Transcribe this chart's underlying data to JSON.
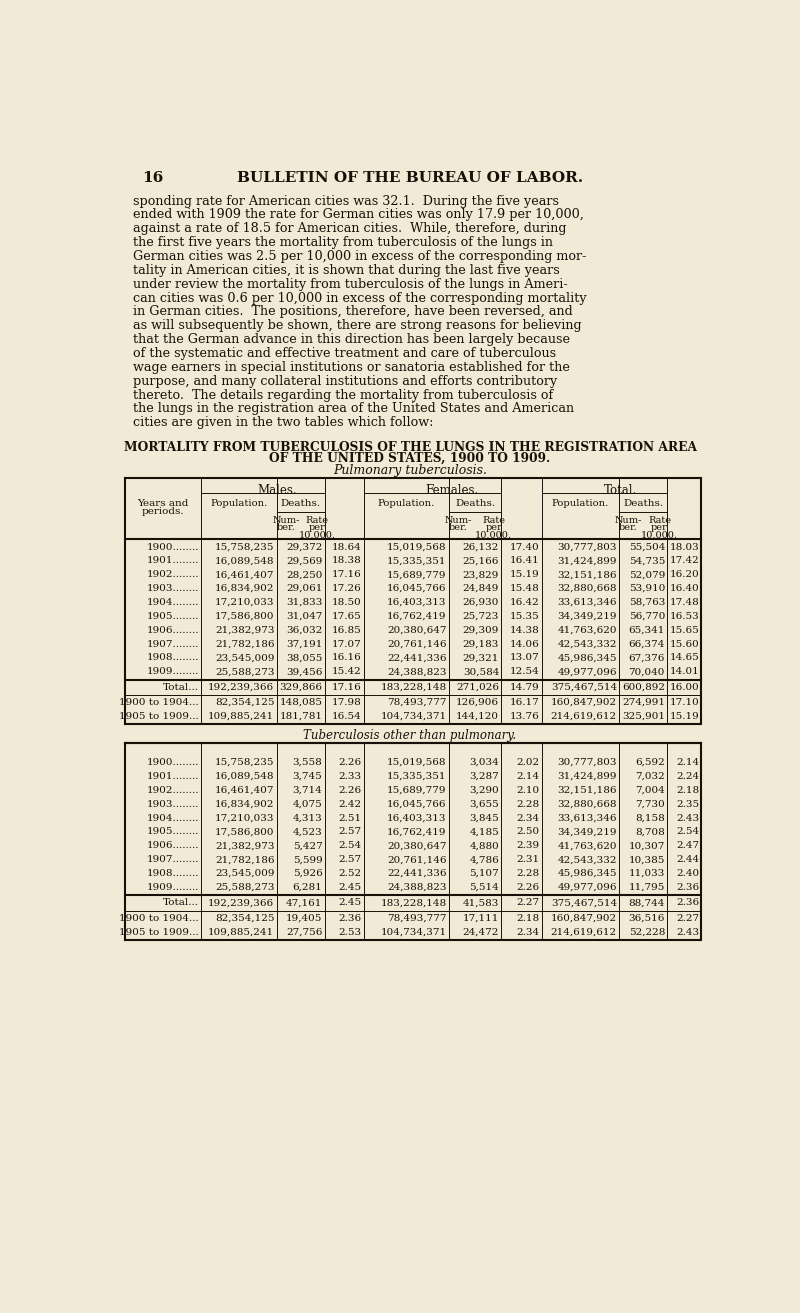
{
  "page_num": "16",
  "header": "BULLETIN OF THE BUREAU OF LABOR.",
  "body_text": [
    "sponding rate for American cities was 32.1.  During the five years",
    "ended with 1909 the rate for German cities was only 17.9 per 10,000,",
    "against a rate of 18.5 for American cities.  While, therefore, during",
    "the first five years the mortality from tuberculosis of the lungs in",
    "German cities was 2.5 per 10,000 in excess of the corresponding mor-",
    "tality in American cities, it is shown that during the last five years",
    "under review the mortality from tuberculosis of the lungs in Ameri-",
    "can cities was 0.6 per 10,000 in excess of the corresponding mortality",
    "in German cities.  The positions, therefore, have been reversed, and",
    "as will subsequently be shown, there are strong reasons for believing",
    "that the German advance in this direction has been largely because",
    "of the systematic and effective treatment and care of tuberculous",
    "wage earners in special institutions or sanatoria established for the",
    "purpose, and many collateral institutions and efforts contributory",
    "thereto.  The details regarding the mortality from tuberculosis of",
    "the lungs in the registration area of the United States and American",
    "cities are given in the two tables which follow:"
  ],
  "table_title_line1": "MORTALITY FROM TUBERCULOSIS OF THE LUNGS IN THE REGISTRATION AREA",
  "table_title_line2": "OF THE UNITED STATES, 1900 TO 1909.",
  "table_subtitle": "Pulmonary tuberculosis.",
  "bg_color": "#f0ead6",
  "text_color": "#1a1008",
  "pulmonary_data": [
    {
      "year": "1900",
      "m_pop": "15,758,235",
      "m_num": "29,372",
      "m_rate": "18.64",
      "f_pop": "15,019,568",
      "f_num": "26,132",
      "f_rate": "17.40",
      "t_pop": "30,777,803",
      "t_num": "55,504",
      "t_rate": "18.03"
    },
    {
      "year": "1901",
      "m_pop": "16,089,548",
      "m_num": "29,569",
      "m_rate": "18.38",
      "f_pop": "15,335,351",
      "f_num": "25,166",
      "f_rate": "16.41",
      "t_pop": "31,424,899",
      "t_num": "54,735",
      "t_rate": "17.42"
    },
    {
      "year": "1902",
      "m_pop": "16,461,407",
      "m_num": "28,250",
      "m_rate": "17.16",
      "f_pop": "15,689,779",
      "f_num": "23,829",
      "f_rate": "15.19",
      "t_pop": "32,151,186",
      "t_num": "52,079",
      "t_rate": "16.20"
    },
    {
      "year": "1903",
      "m_pop": "16,834,902",
      "m_num": "29,061",
      "m_rate": "17.26",
      "f_pop": "16,045,766",
      "f_num": "24,849",
      "f_rate": "15.48",
      "t_pop": "32,880,668",
      "t_num": "53,910",
      "t_rate": "16.40"
    },
    {
      "year": "1904",
      "m_pop": "17,210,033",
      "m_num": "31,833",
      "m_rate": "18.50",
      "f_pop": "16,403,313",
      "f_num": "26,930",
      "f_rate": "16.42",
      "t_pop": "33,613,346",
      "t_num": "58,763",
      "t_rate": "17.48"
    },
    {
      "year": "1905",
      "m_pop": "17,586,800",
      "m_num": "31,047",
      "m_rate": "17.65",
      "f_pop": "16,762,419",
      "f_num": "25,723",
      "f_rate": "15.35",
      "t_pop": "34,349,219",
      "t_num": "56,770",
      "t_rate": "16.53"
    },
    {
      "year": "1906",
      "m_pop": "21,382,973",
      "m_num": "36,032",
      "m_rate": "16.85",
      "f_pop": "20,380,647",
      "f_num": "29,309",
      "f_rate": "14.38",
      "t_pop": "41,763,620",
      "t_num": "65,341",
      "t_rate": "15.65"
    },
    {
      "year": "1907",
      "m_pop": "21,782,186",
      "m_num": "37,191",
      "m_rate": "17.07",
      "f_pop": "20,761,146",
      "f_num": "29,183",
      "f_rate": "14.06",
      "t_pop": "42,543,332",
      "t_num": "66,374",
      "t_rate": "15.60"
    },
    {
      "year": "1908",
      "m_pop": "23,545,009",
      "m_num": "38,055",
      "m_rate": "16.16",
      "f_pop": "22,441,336",
      "f_num": "29,321",
      "f_rate": "13.07",
      "t_pop": "45,986,345",
      "t_num": "67,376",
      "t_rate": "14.65"
    },
    {
      "year": "1909",
      "m_pop": "25,588,273",
      "m_num": "39,456",
      "m_rate": "15.42",
      "f_pop": "24,388,823",
      "f_num": "30,584",
      "f_rate": "12.54",
      "t_pop": "49,977,096",
      "t_num": "70,040",
      "t_rate": "14.01"
    }
  ],
  "pulmonary_total": {
    "year": "Total...",
    "m_pop": "192,239,366",
    "m_num": "329,866",
    "m_rate": "17.16",
    "f_pop": "183,228,148",
    "f_num": "271,026",
    "f_rate": "14.79",
    "t_pop": "375,467,514",
    "t_num": "600,892",
    "t_rate": "16.00"
  },
  "pulmonary_subtotals": [
    {
      "year": "1900 to 1904...",
      "m_pop": "82,354,125",
      "m_num": "148,085",
      "m_rate": "17.98",
      "f_pop": "78,493,777",
      "f_num": "126,906",
      "f_rate": "16.17",
      "t_pop": "160,847,902",
      "t_num": "274,991",
      "t_rate": "17.10"
    },
    {
      "year": "1905 to 1909...",
      "m_pop": "109,885,241",
      "m_num": "181,781",
      "m_rate": "16.54",
      "f_pop": "104,734,371",
      "f_num": "144,120",
      "f_rate": "13.76",
      "t_pop": "214,619,612",
      "t_num": "325,901",
      "t_rate": "15.19"
    }
  ],
  "table2_subtitle": "Tuberculosis other than pulmonary.",
  "other_data": [
    {
      "year": "1900",
      "m_pop": "15,758,235",
      "m_num": "3,558",
      "m_rate": "2.26",
      "f_pop": "15,019,568",
      "f_num": "3,034",
      "f_rate": "2.02",
      "t_pop": "30,777,803",
      "t_num": "6,592",
      "t_rate": "2.14"
    },
    {
      "year": "1901",
      "m_pop": "16,089,548",
      "m_num": "3,745",
      "m_rate": "2.33",
      "f_pop": "15,335,351",
      "f_num": "3,287",
      "f_rate": "2.14",
      "t_pop": "31,424,899",
      "t_num": "7,032",
      "t_rate": "2.24"
    },
    {
      "year": "1902",
      "m_pop": "16,461,407",
      "m_num": "3,714",
      "m_rate": "2.26",
      "f_pop": "15,689,779",
      "f_num": "3,290",
      "f_rate": "2.10",
      "t_pop": "32,151,186",
      "t_num": "7,004",
      "t_rate": "2.18"
    },
    {
      "year": "1903",
      "m_pop": "16,834,902",
      "m_num": "4,075",
      "m_rate": "2.42",
      "f_pop": "16,045,766",
      "f_num": "3,655",
      "f_rate": "2.28",
      "t_pop": "32,880,668",
      "t_num": "7,730",
      "t_rate": "2.35"
    },
    {
      "year": "1904",
      "m_pop": "17,210,033",
      "m_num": "4,313",
      "m_rate": "2.51",
      "f_pop": "16,403,313",
      "f_num": "3,845",
      "f_rate": "2.34",
      "t_pop": "33,613,346",
      "t_num": "8,158",
      "t_rate": "2.43"
    },
    {
      "year": "1905",
      "m_pop": "17,586,800",
      "m_num": "4,523",
      "m_rate": "2.57",
      "f_pop": "16,762,419",
      "f_num": "4,185",
      "f_rate": "2.50",
      "t_pop": "34,349,219",
      "t_num": "8,708",
      "t_rate": "2.54"
    },
    {
      "year": "1906",
      "m_pop": "21,382,973",
      "m_num": "5,427",
      "m_rate": "2.54",
      "f_pop": "20,380,647",
      "f_num": "4,880",
      "f_rate": "2.39",
      "t_pop": "41,763,620",
      "t_num": "10,307",
      "t_rate": "2.47"
    },
    {
      "year": "1907",
      "m_pop": "21,782,186",
      "m_num": "5,599",
      "m_rate": "2.57",
      "f_pop": "20,761,146",
      "f_num": "4,786",
      "f_rate": "2.31",
      "t_pop": "42,543,332",
      "t_num": "10,385",
      "t_rate": "2.44"
    },
    {
      "year": "1908",
      "m_pop": "23,545,009",
      "m_num": "5,926",
      "m_rate": "2.52",
      "f_pop": "22,441,336",
      "f_num": "5,107",
      "f_rate": "2.28",
      "t_pop": "45,986,345",
      "t_num": "11,033",
      "t_rate": "2.40"
    },
    {
      "year": "1909",
      "m_pop": "25,588,273",
      "m_num": "6,281",
      "m_rate": "2.45",
      "f_pop": "24,388,823",
      "f_num": "5,514",
      "f_rate": "2.26",
      "t_pop": "49,977,096",
      "t_num": "11,795",
      "t_rate": "2.36"
    }
  ],
  "other_total": {
    "year": "Total...",
    "m_pop": "192,239,366",
    "m_num": "47,161",
    "m_rate": "2.45",
    "f_pop": "183,228,148",
    "f_num": "41,583",
    "f_rate": "2.27",
    "t_pop": "375,467,514",
    "t_num": "88,744",
    "t_rate": "2.36"
  },
  "other_subtotals": [
    {
      "year": "1900 to 1904...",
      "m_pop": "82,354,125",
      "m_num": "19,405",
      "m_rate": "2.36",
      "f_pop": "78,493,777",
      "f_num": "17,111",
      "f_rate": "2.18",
      "t_pop": "160,847,902",
      "t_num": "36,516",
      "t_rate": "2.27"
    },
    {
      "year": "1905 to 1909...",
      "m_pop": "109,885,241",
      "m_num": "27,756",
      "m_rate": "2.53",
      "f_pop": "104,734,371",
      "f_num": "24,472",
      "f_rate": "2.34",
      "t_pop": "214,619,612",
      "t_num": "52,228",
      "t_rate": "2.43"
    }
  ]
}
